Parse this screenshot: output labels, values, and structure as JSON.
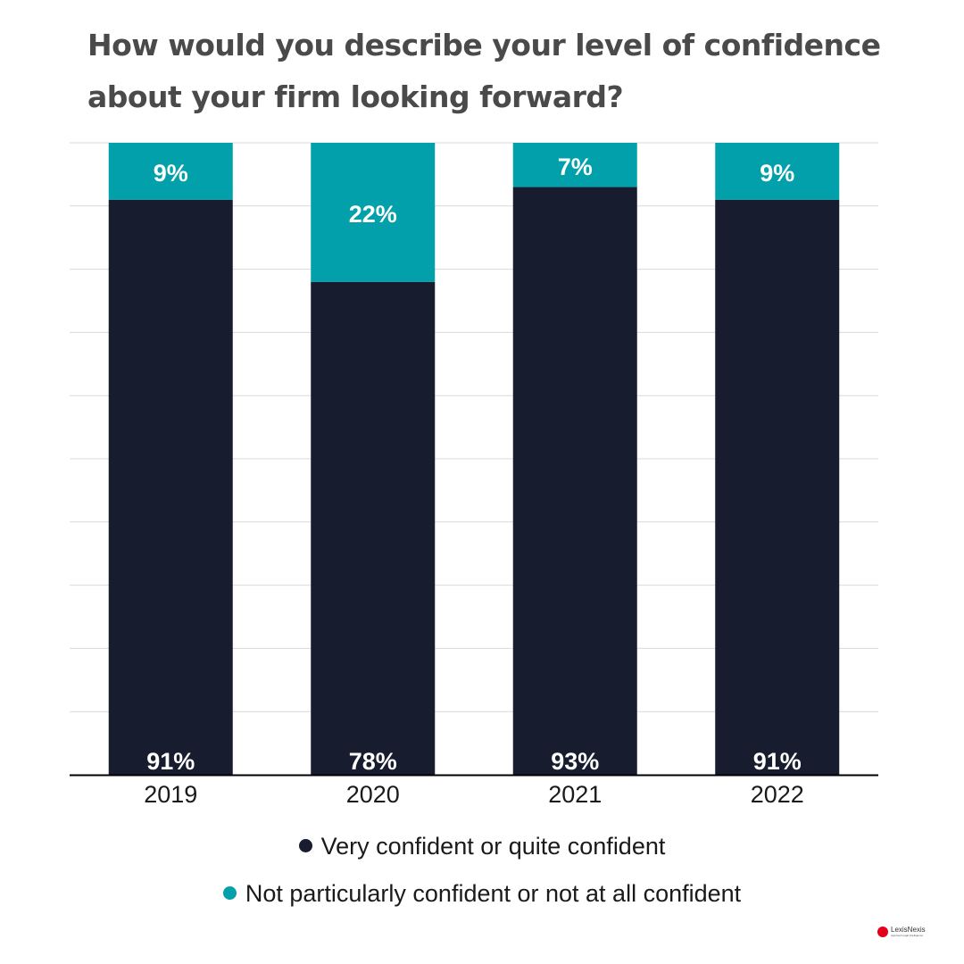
{
  "chart_data": {
    "type": "bar",
    "stacked": true,
    "title": "How would you describe your level of confidence about your firm looking forward?",
    "categories": [
      "2019",
      "2020",
      "2021",
      "2022"
    ],
    "series": [
      {
        "name": "Very confident or quite confident",
        "color": "#171c2e",
        "values": [
          91,
          78,
          93,
          91
        ]
      },
      {
        "name": "Not particularly confident or not at all confident",
        "color": "#02a0aa",
        "values": [
          9,
          22,
          7,
          9
        ]
      }
    ],
    "ylim": [
      0,
      100
    ],
    "grid": true,
    "legend": "bottom",
    "value_suffix": "%"
  },
  "logo": {
    "name": "LexisNexis",
    "tagline": "Apprised Legal Intelligence"
  }
}
